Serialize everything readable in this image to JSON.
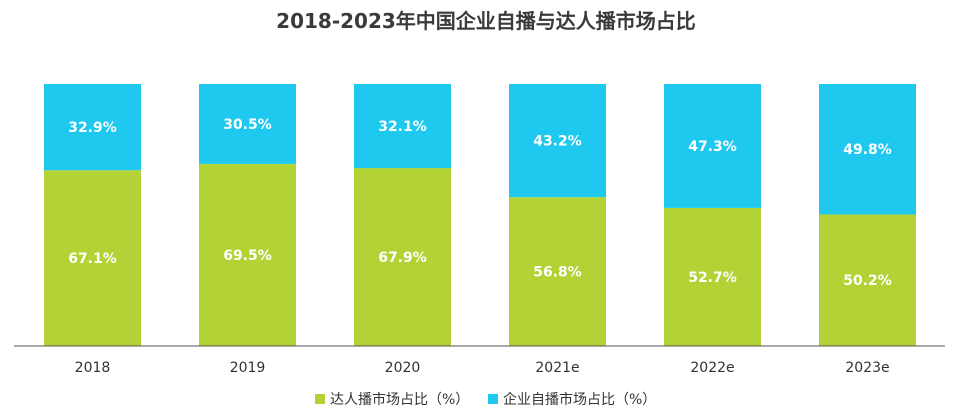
{
  "chart_data": {
    "type": "bar",
    "stacked": true,
    "percent": true,
    "title": "2018-2023年中国企业自播与达人播市场占比",
    "categories": [
      "2018",
      "2019",
      "2020",
      "2021e",
      "2022e",
      "2023e"
    ],
    "series": [
      {
        "name": "达人播市场占比（%）",
        "color": "#b2d235",
        "values": [
          67.1,
          69.5,
          67.9,
          56.8,
          52.7,
          50.2
        ],
        "labels": [
          "67.1%",
          "69.5%",
          "67.9%",
          "56.8%",
          "52.7%",
          "50.2%"
        ]
      },
      {
        "name": "企业自播市场占比（%）",
        "color": "#1fc8ee",
        "values": [
          32.9,
          30.5,
          32.1,
          43.2,
          47.3,
          49.8
        ],
        "labels": [
          "32.9%",
          "30.5%",
          "32.1%",
          "43.2%",
          "47.3%",
          "49.8%"
        ]
      }
    ],
    "ylim": [
      0,
      100
    ],
    "xlabel": "",
    "ylabel": "",
    "grid": false,
    "legend": "bottom-center"
  }
}
